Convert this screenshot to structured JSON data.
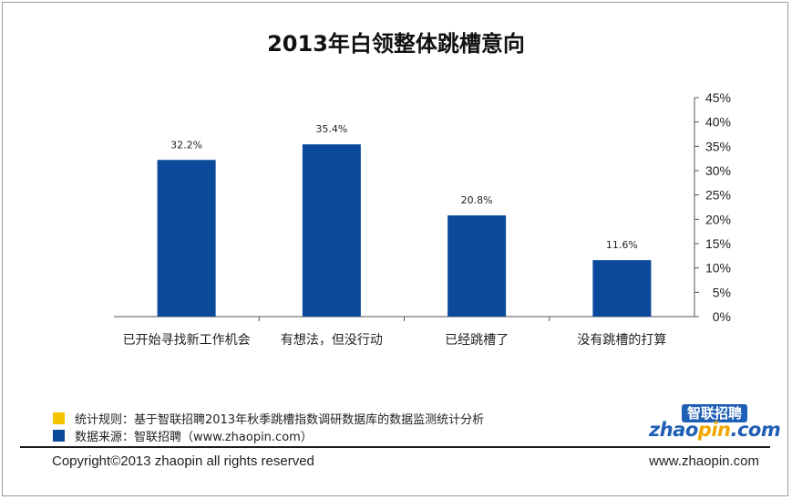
{
  "chart_data": {
    "type": "bar",
    "title": "2013年白领整体跳槽意向",
    "categories": [
      "已开始寻找新工作机会",
      "有想法，但没行动",
      "已经跳槽了",
      "没有跳槽的打算"
    ],
    "values": [
      32.2,
      35.4,
      20.8,
      11.6
    ],
    "value_labels": [
      "32.2%",
      "35.4%",
      "20.8%",
      "11.6%"
    ],
    "ylim": [
      0,
      45
    ],
    "y_ticks": [
      "0%",
      "5%",
      "10%",
      "15%",
      "20%",
      "25%",
      "30%",
      "35%",
      "40%",
      "45%"
    ],
    "y_axis_side": "right",
    "grid": false,
    "legend": "none",
    "bar_color": "#0b4a9a"
  },
  "notes": [
    {
      "text": "统计规则：基于智联招聘2013年秋季跳槽指数调研数据库的数据监测统计分析",
      "color": "#f3c400"
    },
    {
      "text": "数据来源：智联招聘（www.zhaopin.com）",
      "color": "#0b4a9a"
    }
  ],
  "logo": {
    "top_text": "智联招聘",
    "main_a": "zhao",
    "main_b": "pin",
    "main_c": ".com"
  },
  "footer": {
    "copyright": "Copyright©2013 zhaopin all rights reserved",
    "site": "www.zhaopin.com"
  }
}
